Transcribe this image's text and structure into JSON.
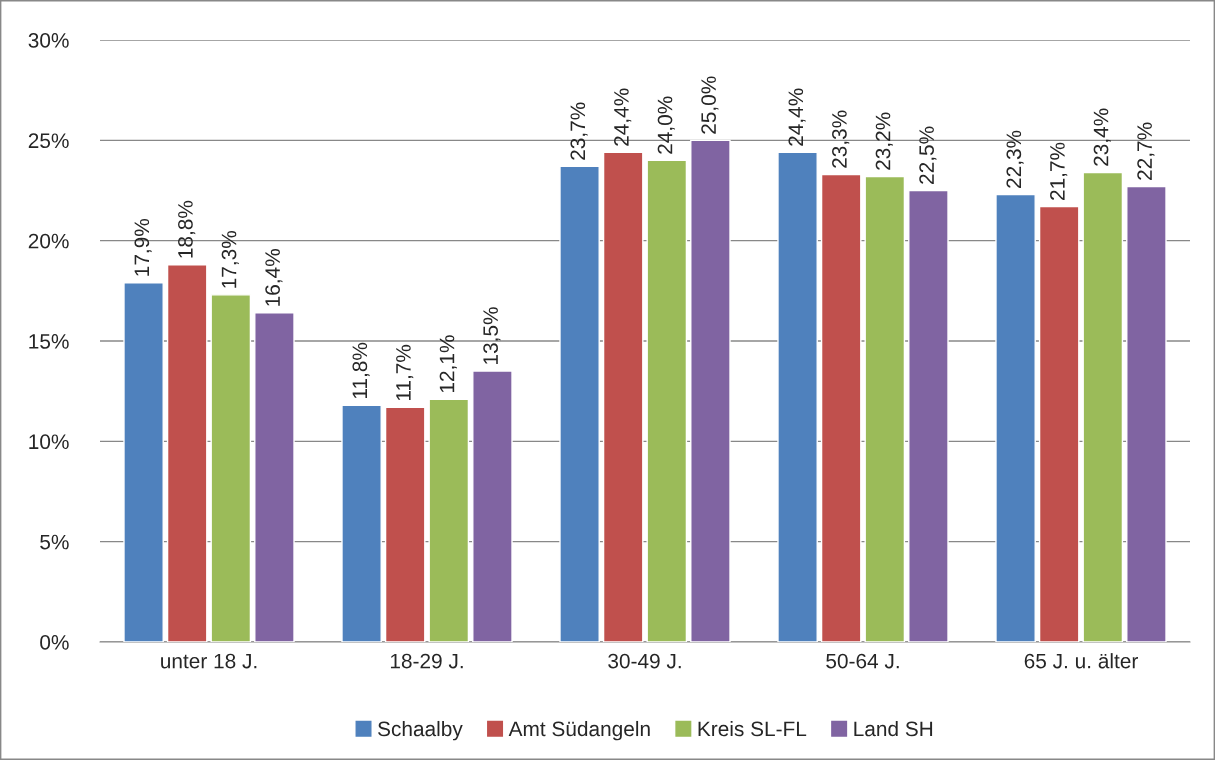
{
  "chart_data": {
    "type": "bar",
    "categories": [
      "unter 18 J.",
      "18-29 J.",
      "30-49 J.",
      "50-64 J.",
      "65 J. u. älter"
    ],
    "series": [
      {
        "name": "Schaalby",
        "color": "#4f81bd",
        "values": [
          17.9,
          11.8,
          23.7,
          24.4,
          22.3
        ],
        "value_labels": [
          "17,9%",
          "11,8%",
          "23,7%",
          "24,4%",
          "22,3%"
        ]
      },
      {
        "name": "Amt Südangeln",
        "color": "#c0504d",
        "values": [
          18.8,
          11.7,
          24.4,
          23.3,
          21.7
        ],
        "value_labels": [
          "18,8%",
          "11,7%",
          "24,4%",
          "23,3%",
          "21,7%"
        ]
      },
      {
        "name": "Kreis SL-FL",
        "color": "#9bbb59",
        "values": [
          17.3,
          12.1,
          24.0,
          23.2,
          23.4
        ],
        "value_labels": [
          "17,3%",
          "12,1%",
          "24,0%",
          "23,2%",
          "23,4%"
        ]
      },
      {
        "name": "Land SH",
        "color": "#8064a2",
        "values": [
          16.4,
          13.5,
          25.0,
          22.5,
          22.7
        ],
        "value_labels": [
          "16,4%",
          "13,5%",
          "25,0%",
          "22,5%",
          "22,7%"
        ]
      }
    ],
    "ylim": [
      0,
      30
    ],
    "yticks": [
      {
        "value": 0,
        "label": "0%"
      },
      {
        "value": 5,
        "label": "5%"
      },
      {
        "value": 10,
        "label": "10%"
      },
      {
        "value": 15,
        "label": "15%"
      },
      {
        "value": 20,
        "label": "20%"
      },
      {
        "value": 25,
        "label": "25%"
      },
      {
        "value": 30,
        "label": "30%"
      }
    ],
    "grid": "y",
    "legend": "bottom"
  }
}
